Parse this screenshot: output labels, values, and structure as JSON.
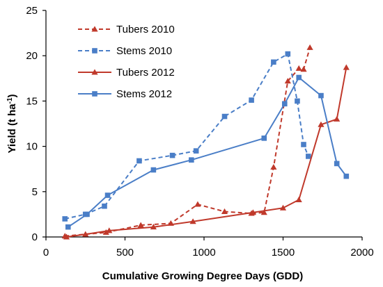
{
  "chart_data": {
    "type": "line",
    "title": "",
    "xlabel": "Cumulative Growing Degree Days (GDD)",
    "ylabel": "Yield (t ha",
    "ylabel_sup": "-1",
    "ylabel_suffix": ")",
    "xlim": [
      0,
      2000
    ],
    "ylim": [
      0,
      25
    ],
    "xticks": [
      0,
      500,
      1000,
      1500,
      2000
    ],
    "yticks": [
      0,
      5,
      10,
      15,
      20,
      25
    ],
    "grid": false,
    "legend_position": "top-left",
    "series": [
      {
        "name": "Tubers 2010",
        "color": "#C0392B",
        "dashed": true,
        "marker": "triangle",
        "points": [
          [
            120,
            0.1
          ],
          [
            380,
            0.5
          ],
          [
            600,
            1.3
          ],
          [
            790,
            1.5
          ],
          [
            960,
            3.6
          ],
          [
            1130,
            2.8
          ],
          [
            1300,
            2.6
          ],
          [
            1380,
            2.7
          ],
          [
            1440,
            7.7
          ],
          [
            1530,
            17.2
          ],
          [
            1600,
            18.6
          ],
          [
            1630,
            18.5
          ],
          [
            1670,
            20.9
          ]
        ]
      },
      {
        "name": "Stems 2010",
        "color": "#4A7EC7",
        "dashed": true,
        "marker": "square",
        "points": [
          [
            120,
            2.0
          ],
          [
            250,
            2.5
          ],
          [
            370,
            3.4
          ],
          [
            590,
            8.4
          ],
          [
            800,
            9.0
          ],
          [
            950,
            9.5
          ],
          [
            1130,
            13.3
          ],
          [
            1300,
            15.1
          ],
          [
            1440,
            19.3
          ],
          [
            1530,
            20.2
          ],
          [
            1590,
            15.0
          ],
          [
            1630,
            10.2
          ],
          [
            1660,
            8.9
          ]
        ]
      },
      {
        "name": "Tubers 2012",
        "color": "#C0392B",
        "dashed": false,
        "marker": "triangle",
        "points": [
          [
            130,
            0.0
          ],
          [
            250,
            0.3
          ],
          [
            400,
            0.7
          ],
          [
            680,
            1.1
          ],
          [
            930,
            1.7
          ],
          [
            1310,
            2.7
          ],
          [
            1500,
            3.2
          ],
          [
            1600,
            4.1
          ],
          [
            1740,
            12.4
          ],
          [
            1840,
            13.0
          ],
          [
            1900,
            18.7
          ]
        ]
      },
      {
        "name": "Stems 2012",
        "color": "#4A7EC7",
        "dashed": false,
        "marker": "square",
        "points": [
          [
            140,
            1.1
          ],
          [
            260,
            2.5
          ],
          [
            390,
            4.6
          ],
          [
            680,
            7.4
          ],
          [
            920,
            8.5
          ],
          [
            1380,
            10.9
          ],
          [
            1510,
            14.7
          ],
          [
            1600,
            17.6
          ],
          [
            1740,
            15.6
          ],
          [
            1840,
            8.1
          ],
          [
            1900,
            6.7
          ]
        ]
      }
    ]
  }
}
